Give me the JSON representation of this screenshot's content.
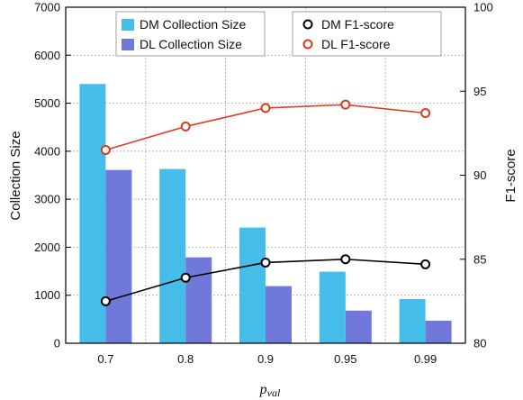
{
  "chart_data": {
    "type": "bar+line",
    "categories": [
      "0.7",
      "0.8",
      "0.9",
      "0.95",
      "0.99"
    ],
    "xlabel_main": "p",
    "xlabel_sub": "val",
    "ylabel_left": "Collection Size",
    "ylabel_right": "F1-score",
    "ylim_left": [
      0,
      7000
    ],
    "ylim_right": [
      80,
      100
    ],
    "yticks_left": [
      "0",
      "1000",
      "2000",
      "3000",
      "4000",
      "5000",
      "6000",
      "7000"
    ],
    "yticks_right": [
      "80",
      "85",
      "90",
      "95",
      "100"
    ],
    "grid": true,
    "bar_series": [
      {
        "name": "DM Collection Size",
        "color": "#45BDE8",
        "values": [
          5400,
          3630,
          2410,
          1490,
          920
        ]
      },
      {
        "name": "DL Collection Size",
        "color": "#7079DA",
        "values": [
          3610,
          1790,
          1190,
          680,
          470
        ]
      }
    ],
    "line_series": [
      {
        "name": "DM F1-score",
        "color": "#000000",
        "values": [
          82.5,
          83.9,
          84.8,
          85.0,
          84.7
        ]
      },
      {
        "name": "DL F1-score",
        "color": "#E03A1E",
        "values": [
          91.5,
          92.9,
          94.0,
          94.2,
          93.7
        ]
      }
    ]
  }
}
